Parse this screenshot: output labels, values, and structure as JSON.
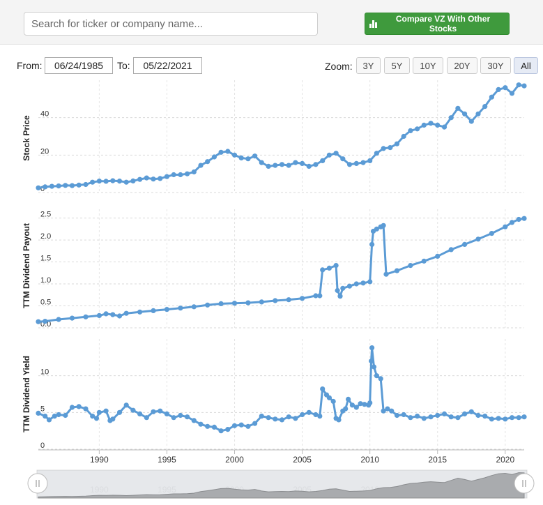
{
  "search": {
    "placeholder": "Search for ticker or company name..."
  },
  "compare_button": {
    "label": "Compare VZ With Other Stocks",
    "color": "#3f9a3d"
  },
  "range": {
    "from_label": "From:",
    "from_value": "06/24/1985",
    "to_label": "To:",
    "to_value": "05/22/2021"
  },
  "zoom": {
    "label": "Zoom:",
    "options": [
      "3Y",
      "5Y",
      "10Y",
      "20Y",
      "30Y",
      "All"
    ],
    "active": "All"
  },
  "series_color": "#5b9bd5",
  "chart_data": [
    {
      "type": "line",
      "ylabel": "Stock Price",
      "ylim": [
        0,
        60
      ],
      "yticks": [
        0,
        20,
        40
      ],
      "grid": true,
      "points": [
        [
          1985.5,
          2.5
        ],
        [
          1986,
          3
        ],
        [
          1986.5,
          3.3
        ],
        [
          1987,
          3.5
        ],
        [
          1987.5,
          3.8
        ],
        [
          1988,
          3.7
        ],
        [
          1988.5,
          4
        ],
        [
          1989,
          4.3
        ],
        [
          1989.5,
          5.5
        ],
        [
          1990,
          6.1
        ],
        [
          1990.5,
          6
        ],
        [
          1991,
          6.3
        ],
        [
          1991.5,
          6.1
        ],
        [
          1992,
          5.5
        ],
        [
          1992.5,
          6.2
        ],
        [
          1993,
          7
        ],
        [
          1993.5,
          7.8
        ],
        [
          1994,
          7.2
        ],
        [
          1994.5,
          7.5
        ],
        [
          1995,
          8.5
        ],
        [
          1995.5,
          9.5
        ],
        [
          1996,
          9.5
        ],
        [
          1996.5,
          10
        ],
        [
          1997,
          11
        ],
        [
          1997.5,
          14.5
        ],
        [
          1998,
          16.5
        ],
        [
          1998.5,
          19
        ],
        [
          1999,
          21.5
        ],
        [
          1999.5,
          22
        ],
        [
          2000,
          20
        ],
        [
          2000.5,
          18.5
        ],
        [
          2001,
          18
        ],
        [
          2001.5,
          19.5
        ],
        [
          2002,
          16
        ],
        [
          2002.5,
          14
        ],
        [
          2003,
          14.5
        ],
        [
          2003.5,
          15
        ],
        [
          2004,
          14.5
        ],
        [
          2004.5,
          16
        ],
        [
          2005,
          15.5
        ],
        [
          2005.5,
          14
        ],
        [
          2006,
          15
        ],
        [
          2006.5,
          17
        ],
        [
          2007,
          20
        ],
        [
          2007.5,
          21
        ],
        [
          2008,
          18
        ],
        [
          2008.5,
          15
        ],
        [
          2009,
          15.5
        ],
        [
          2009.5,
          16
        ],
        [
          2010,
          17
        ],
        [
          2010.5,
          21
        ],
        [
          2011,
          23.5
        ],
        [
          2011.5,
          24
        ],
        [
          2012,
          26
        ],
        [
          2012.5,
          30
        ],
        [
          2013,
          33
        ],
        [
          2013.5,
          34
        ],
        [
          2014,
          36
        ],
        [
          2014.5,
          37
        ],
        [
          2015,
          36
        ],
        [
          2015.5,
          35
        ],
        [
          2016,
          40
        ],
        [
          2016.5,
          45
        ],
        [
          2017,
          42
        ],
        [
          2017.5,
          38
        ],
        [
          2018,
          42
        ],
        [
          2018.5,
          46
        ],
        [
          2019,
          51
        ],
        [
          2019.5,
          55
        ],
        [
          2020,
          56
        ],
        [
          2020.5,
          53
        ],
        [
          2021,
          57.5
        ],
        [
          2021.4,
          57
        ]
      ]
    },
    {
      "type": "line",
      "ylabel": "TTM Dividend Payout",
      "ylim": [
        0,
        2.7
      ],
      "yticks": [
        0.0,
        0.5,
        1.0,
        1.5,
        2.0,
        2.5
      ],
      "tick_labels": [
        "0.0",
        "0.5",
        "1.0",
        "1.5",
        "2.0",
        "2.5"
      ],
      "grid": true,
      "points": [
        [
          1985.5,
          0.14
        ],
        [
          1986,
          0.15
        ],
        [
          1987,
          0.19
        ],
        [
          1988,
          0.22
        ],
        [
          1989,
          0.25
        ],
        [
          1990,
          0.28
        ],
        [
          1990.5,
          0.32
        ],
        [
          1991,
          0.3
        ],
        [
          1991.5,
          0.27
        ],
        [
          1992,
          0.33
        ],
        [
          1993,
          0.36
        ],
        [
          1994,
          0.39
        ],
        [
          1995,
          0.42
        ],
        [
          1996,
          0.45
        ],
        [
          1997,
          0.48
        ],
        [
          1998,
          0.52
        ],
        [
          1999,
          0.55
        ],
        [
          2000,
          0.56
        ],
        [
          2001,
          0.57
        ],
        [
          2002,
          0.59
        ],
        [
          2003,
          0.62
        ],
        [
          2004,
          0.64
        ],
        [
          2005,
          0.67
        ],
        [
          2006,
          0.73
        ],
        [
          2006.3,
          0.73
        ],
        [
          2006.5,
          1.32
        ],
        [
          2007,
          1.36
        ],
        [
          2007.5,
          1.42
        ],
        [
          2007.6,
          0.85
        ],
        [
          2007.8,
          0.72
        ],
        [
          2008,
          0.9
        ],
        [
          2008.5,
          0.95
        ],
        [
          2009,
          1.0
        ],
        [
          2009.5,
          1.02
        ],
        [
          2010,
          1.05
        ],
        [
          2010.15,
          1.9
        ],
        [
          2010.25,
          2.2
        ],
        [
          2010.5,
          2.25
        ],
        [
          2010.8,
          2.3
        ],
        [
          2011,
          2.33
        ],
        [
          2011.2,
          1.22
        ],
        [
          2012,
          1.3
        ],
        [
          2013,
          1.42
        ],
        [
          2014,
          1.52
        ],
        [
          2015,
          1.63
        ],
        [
          2016,
          1.78
        ],
        [
          2017,
          1.9
        ],
        [
          2018,
          2.02
        ],
        [
          2019,
          2.15
        ],
        [
          2020,
          2.3
        ],
        [
          2020.5,
          2.4
        ],
        [
          2021,
          2.47
        ],
        [
          2021.4,
          2.49
        ]
      ]
    },
    {
      "type": "line",
      "ylabel": "TTM Dividend Yield",
      "ylim": [
        0,
        15
      ],
      "yticks": [
        0,
        5,
        10
      ],
      "grid": true,
      "points": [
        [
          1985.5,
          4.9
        ],
        [
          1986,
          4.5
        ],
        [
          1986.3,
          4.0
        ],
        [
          1986.7,
          4.5
        ],
        [
          1987,
          4.7
        ],
        [
          1987.5,
          4.6
        ],
        [
          1988,
          5.7
        ],
        [
          1988.5,
          5.8
        ],
        [
          1989,
          5.5
        ],
        [
          1989.5,
          4.5
        ],
        [
          1989.8,
          4.2
        ],
        [
          1990,
          5.0
        ],
        [
          1990.5,
          5.2
        ],
        [
          1990.8,
          3.9
        ],
        [
          1991,
          4.1
        ],
        [
          1991.5,
          5.0
        ],
        [
          1992,
          6.0
        ],
        [
          1992.5,
          5.3
        ],
        [
          1993,
          4.8
        ],
        [
          1993.5,
          4.3
        ],
        [
          1994,
          5.1
        ],
        [
          1994.5,
          5.2
        ],
        [
          1995,
          4.8
        ],
        [
          1995.5,
          4.3
        ],
        [
          1996,
          4.6
        ],
        [
          1996.5,
          4.4
        ],
        [
          1997,
          3.9
        ],
        [
          1997.5,
          3.4
        ],
        [
          1998,
          3.1
        ],
        [
          1998.5,
          3.0
        ],
        [
          1999,
          2.5
        ],
        [
          1999.5,
          2.7
        ],
        [
          2000,
          3.2
        ],
        [
          2000.5,
          3.3
        ],
        [
          2001,
          3.1
        ],
        [
          2001.5,
          3.5
        ],
        [
          2002,
          4.5
        ],
        [
          2002.5,
          4.3
        ],
        [
          2003,
          4.1
        ],
        [
          2003.5,
          4.0
        ],
        [
          2004,
          4.4
        ],
        [
          2004.5,
          4.2
        ],
        [
          2005,
          4.7
        ],
        [
          2005.5,
          5.0
        ],
        [
          2006,
          4.7
        ],
        [
          2006.3,
          4.5
        ],
        [
          2006.5,
          8.2
        ],
        [
          2006.8,
          7.4
        ],
        [
          2007,
          7.0
        ],
        [
          2007.3,
          6.5
        ],
        [
          2007.5,
          4.2
        ],
        [
          2007.7,
          4.0
        ],
        [
          2008,
          5.2
        ],
        [
          2008.2,
          5.5
        ],
        [
          2008.4,
          6.8
        ],
        [
          2008.7,
          6.0
        ],
        [
          2009,
          5.7
        ],
        [
          2009.3,
          6.2
        ],
        [
          2009.6,
          6.1
        ],
        [
          2009.9,
          6.0
        ],
        [
          2010,
          6.3
        ],
        [
          2010.1,
          12.0
        ],
        [
          2010.15,
          13.8
        ],
        [
          2010.3,
          11.2
        ],
        [
          2010.5,
          10.0
        ],
        [
          2010.8,
          9.6
        ],
        [
          2011,
          5.2
        ],
        [
          2011.3,
          5.5
        ],
        [
          2011.6,
          5.2
        ],
        [
          2012,
          4.6
        ],
        [
          2012.5,
          4.7
        ],
        [
          2013,
          4.3
        ],
        [
          2013.5,
          4.5
        ],
        [
          2014,
          4.2
        ],
        [
          2014.5,
          4.4
        ],
        [
          2015,
          4.6
        ],
        [
          2015.5,
          4.8
        ],
        [
          2016,
          4.4
        ],
        [
          2016.5,
          4.3
        ],
        [
          2017,
          4.8
        ],
        [
          2017.5,
          5.1
        ],
        [
          2018,
          4.6
        ],
        [
          2018.5,
          4.5
        ],
        [
          2019,
          4.1
        ],
        [
          2019.5,
          4.2
        ],
        [
          2020,
          4.1
        ],
        [
          2020.5,
          4.3
        ],
        [
          2021,
          4.3
        ],
        [
          2021.4,
          4.4
        ]
      ]
    }
  ],
  "x_axis": {
    "ticks": [
      "1990",
      "1995",
      "2000",
      "2005",
      "2010",
      "2015",
      "2020"
    ]
  },
  "navigator": {
    "labels": [
      "1990",
      "1995",
      "2000",
      "2005",
      "2010",
      "2015",
      "2020"
    ]
  }
}
